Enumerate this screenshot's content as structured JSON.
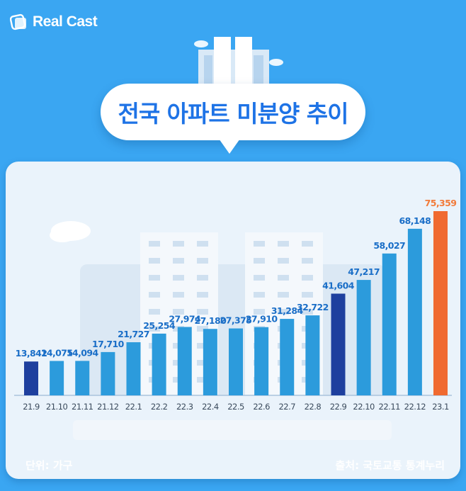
{
  "brand": {
    "name": "Real Cast"
  },
  "title": "전국 아파트 미분양 추이",
  "footer": {
    "unit": "단위: 가구",
    "source": "출처: 국토교통 통계누리"
  },
  "colors": {
    "background": "#3aa6f2",
    "bar": "#2c9bdc",
    "bar_dark": "#1e3f9e",
    "bar_highlight": "#f06a30",
    "value_label": "#1a6ec7",
    "highlight_label": "#f27b3a",
    "title": "#1e73e6"
  },
  "chart_data": {
    "type": "bar",
    "title": "전국 아파트 미분양 추이",
    "xlabel": "",
    "ylabel": "",
    "unit": "단위: 가구",
    "categories": [
      "21.9",
      "21.10",
      "21.11",
      "21.12",
      "22.1",
      "22.2",
      "22.3",
      "22.4",
      "22.5",
      "22.6",
      "22.7",
      "22.8",
      "22.9",
      "22.10",
      "22.11",
      "22.12",
      "23.1"
    ],
    "values": [
      13842,
      14075,
      14094,
      17710,
      21727,
      25254,
      27974,
      27180,
      27375,
      27910,
      31284,
      32722,
      41604,
      47217,
      58027,
      68148,
      75359
    ],
    "value_labels": [
      "13,842",
      "14,075",
      "14,094",
      "17,710",
      "21,727",
      "25,254",
      "27,974",
      "27,180",
      "27,375",
      "27,910",
      "31,284",
      "32,722",
      "41,604",
      "47,217",
      "58,027",
      "68,148",
      "75,359"
    ],
    "emphasis": {
      "dark": [
        0,
        12
      ],
      "highlight": [
        16
      ]
    },
    "ylim": [
      0,
      75359
    ],
    "grid": false,
    "legend": "none"
  }
}
